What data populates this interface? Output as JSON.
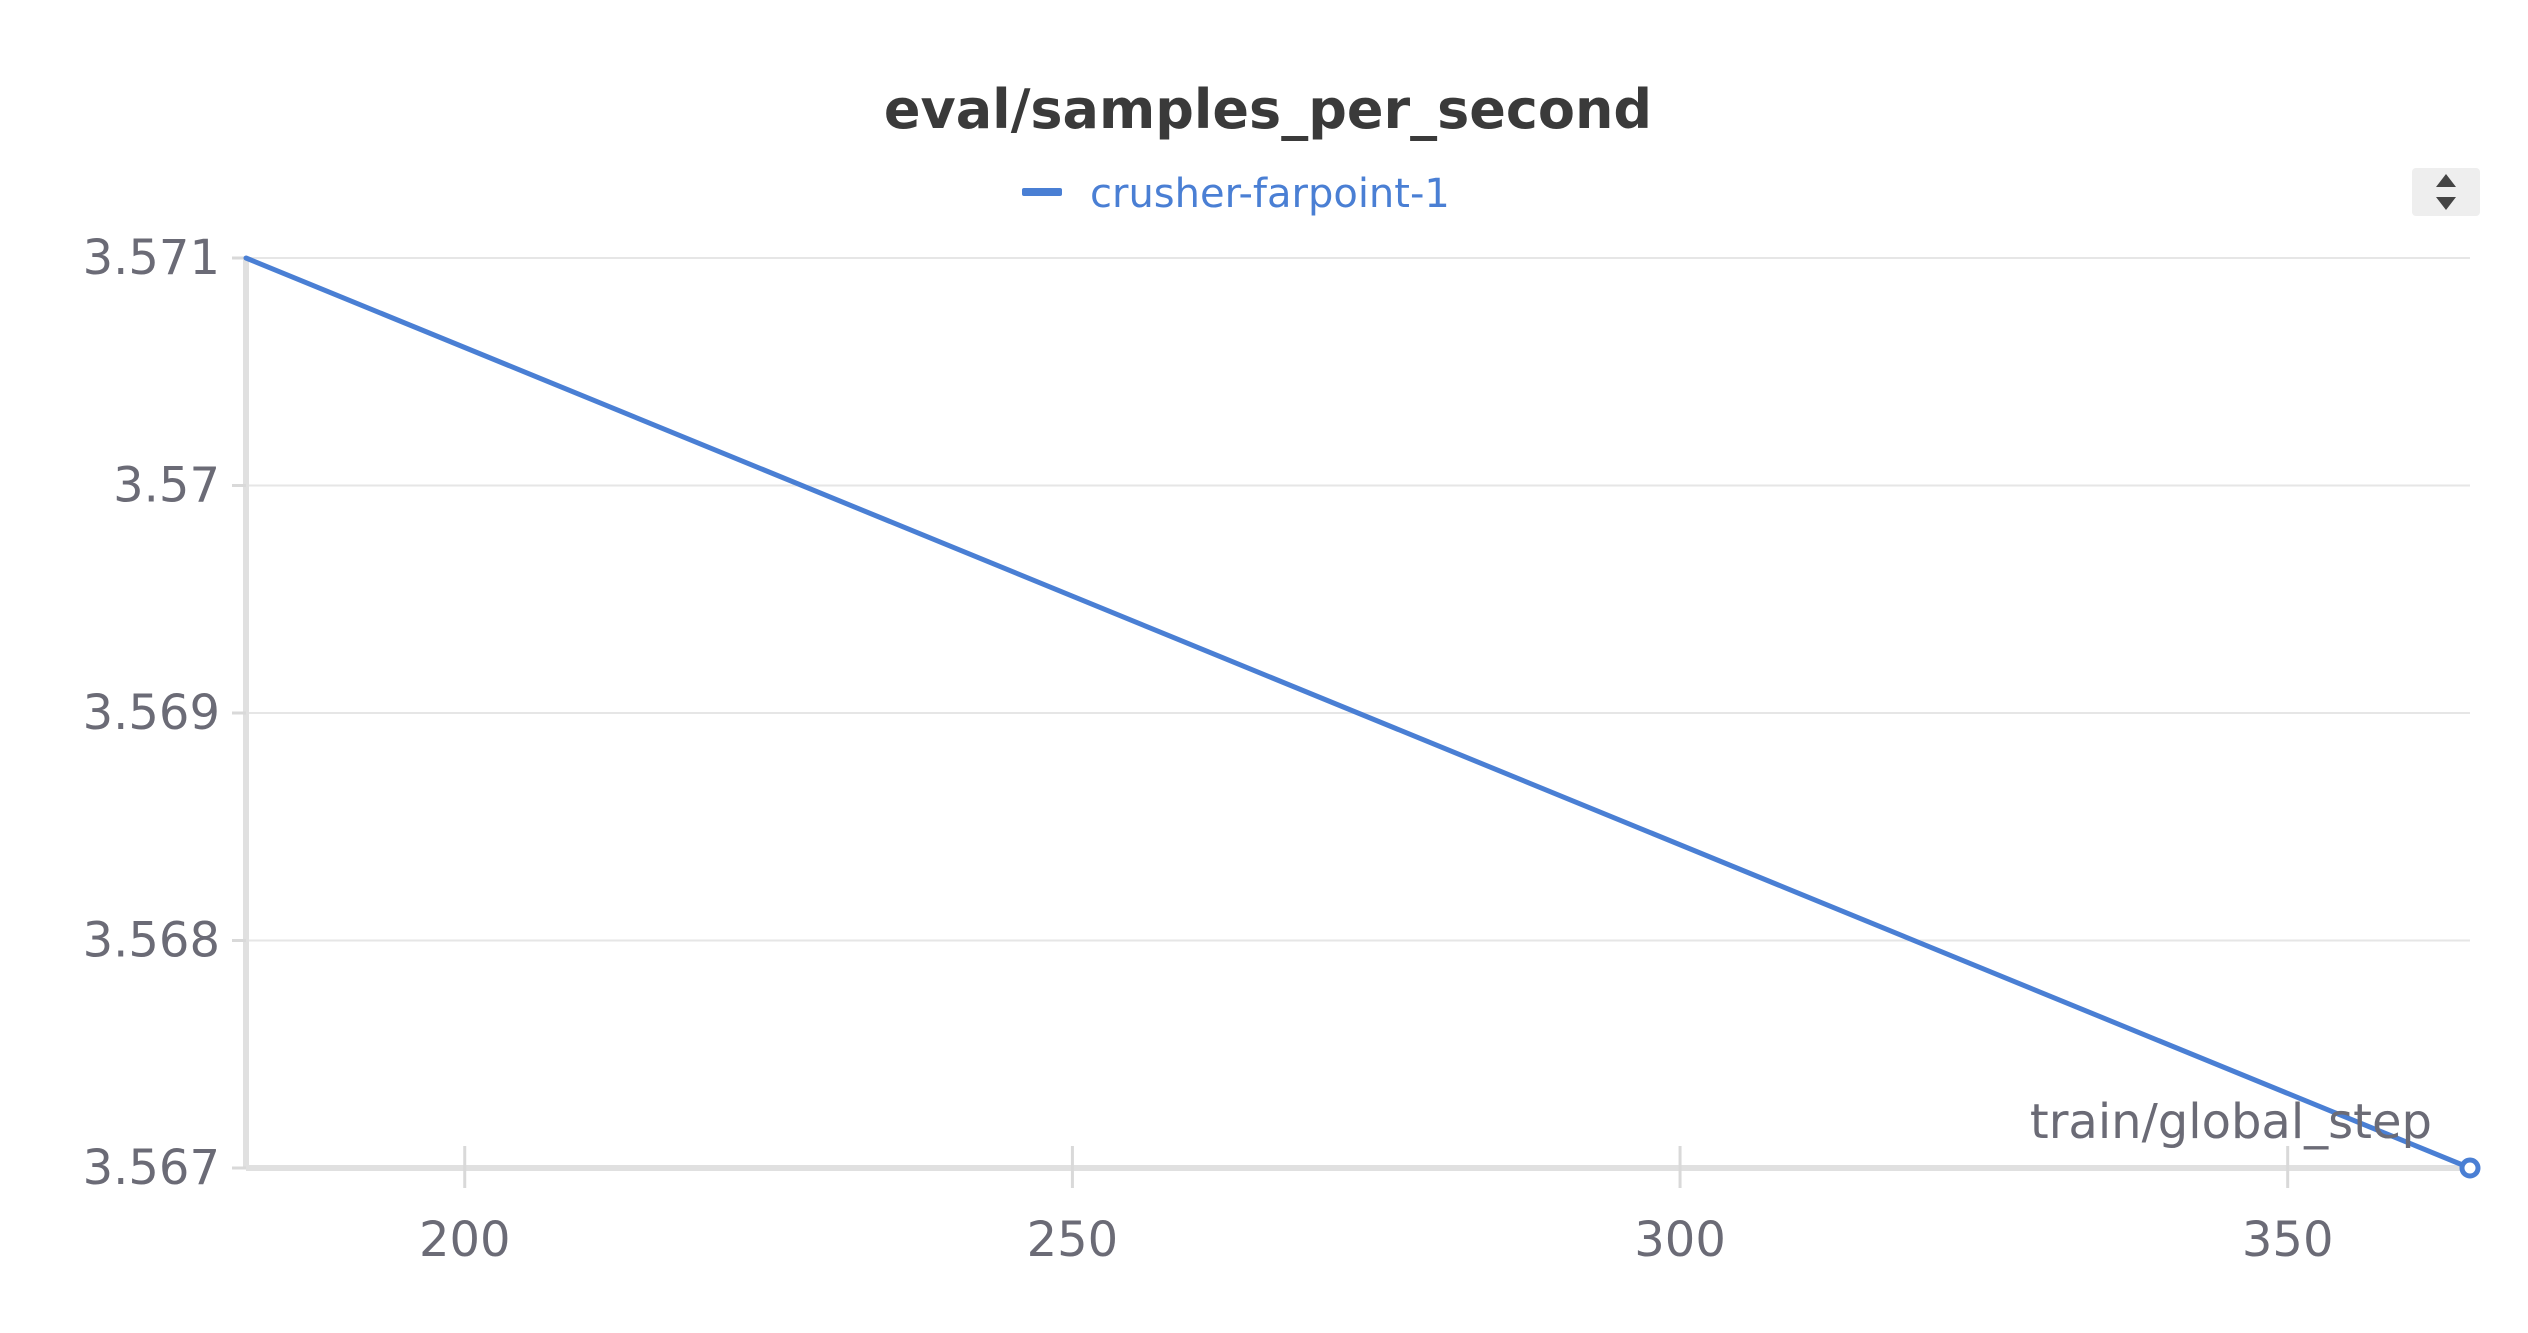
{
  "chart_data": {
    "type": "line",
    "title": "eval/samples_per_second",
    "xlabel": "train/global_step",
    "ylabel": "",
    "xlim": [
      182,
      365
    ],
    "ylim": [
      3.567,
      3.571
    ],
    "x_ticks": [
      "200",
      "250",
      "300",
      "350"
    ],
    "x_tick_values": [
      200,
      250,
      300,
      350
    ],
    "y_ticks": [
      "3.571",
      "3.57",
      "3.569",
      "3.568",
      "3.567"
    ],
    "y_tick_values": [
      3.571,
      3.57,
      3.569,
      3.568,
      3.567
    ],
    "grid": true,
    "legend_position": "top-center",
    "series": [
      {
        "name": "crusher-farpoint-1",
        "color": "#4a7fd4",
        "x": [
          182,
          365
        ],
        "y": [
          3.571,
          3.567
        ]
      }
    ]
  },
  "controls": {
    "scroll_icon": "up-down-arrows-icon"
  }
}
